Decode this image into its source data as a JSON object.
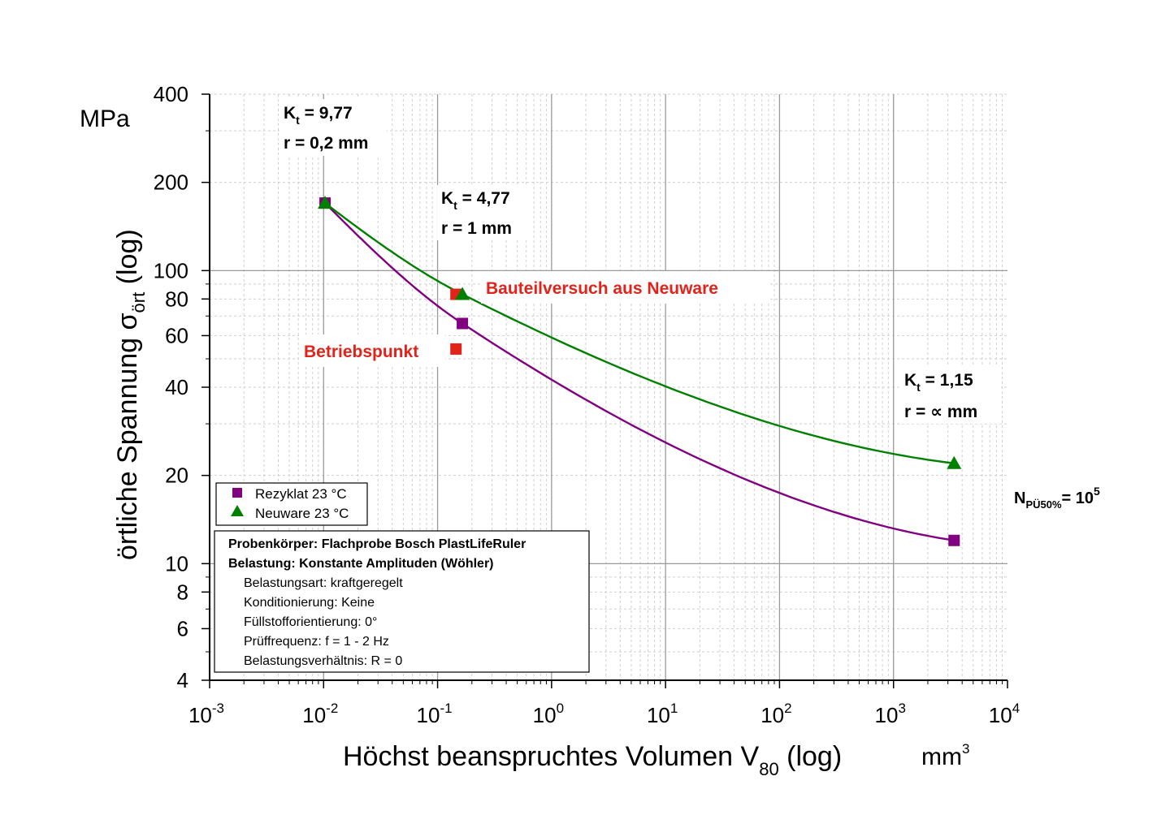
{
  "chart_data": {
    "type": "line",
    "x_scale": "log",
    "y_scale": "log",
    "xlim": [
      0.001,
      10000
    ],
    "ylim": [
      4,
      400
    ],
    "x_ticks": [
      {
        "base": "10",
        "exp": "-3"
      },
      {
        "base": "10",
        "exp": "-2"
      },
      {
        "base": "10",
        "exp": "-1"
      },
      {
        "base": "10",
        "exp": "0"
      },
      {
        "base": "10",
        "exp": "1"
      },
      {
        "base": "10",
        "exp": "2"
      },
      {
        "base": "10",
        "exp": "3"
      },
      {
        "base": "10",
        "exp": "4"
      }
    ],
    "y_ticks": [
      "400",
      "200",
      "100",
      "80",
      "60",
      "40",
      "20",
      "10",
      "8",
      "6",
      "4"
    ],
    "y_unit": "MPa",
    "x_unit": {
      "base": "mm",
      "exp": "3"
    },
    "ylabel": {
      "main": "örtliche Spannung σ",
      "sub": "ört",
      "tail": " (log)"
    },
    "xlabel": {
      "main": "Höchst beanspruchtes Volumen V",
      "sub": "80",
      "tail": " (log)"
    },
    "grid": true,
    "series": [
      {
        "name": "Rezyklat 23 °C",
        "color": "#800080",
        "marker": "square",
        "x": [
          0.0103,
          0.165,
          3400
        ],
        "y": [
          170,
          66,
          12
        ]
      },
      {
        "name": "Neuware 23 °C",
        "color": "#008000",
        "marker": "triangle",
        "x": [
          0.0103,
          0.165,
          3400
        ],
        "y": [
          170,
          83,
          22
        ]
      }
    ],
    "extra_points": [
      {
        "x": 0.145,
        "y": 83,
        "color": "#e2231a",
        "label": "Bauteilversuch aus Neuware"
      },
      {
        "x": 0.145,
        "y": 54,
        "color": "#e2231a",
        "label": "Betriebspunkt"
      }
    ],
    "annotations": [
      {
        "kt_label": "K",
        "kt_sub": "t",
        "kt_value": " = 9,77",
        "r_label": "r = 0,2 mm"
      },
      {
        "kt_label": "K",
        "kt_sub": "t",
        "kt_value": " = 4,77",
        "r_label": "r = 1 mm"
      },
      {
        "kt_label": "K",
        "kt_sub": "t",
        "kt_value": " = 1,15",
        "r_label": "r =  ∝ mm"
      }
    ],
    "n_label": {
      "main": "N",
      "sub": "PÜ50%",
      "mid": "= 10",
      "sup": "5"
    },
    "legend_position": "bottom-left",
    "info_box": {
      "lines_bold": [
        "Probenkörper: Flachprobe Bosch PlastLifeRuler",
        "Belastung: Konstante Amplituden (Wöhler)"
      ],
      "lines": [
        "Belastungsart: kraftgeregelt",
        "Konditionierung: Keine",
        "Füllstofforientierung: 0°",
        "Prüffrequenz: f = 1 - 2 Hz",
        "Belastungsverhältnis: R = 0"
      ]
    }
  }
}
